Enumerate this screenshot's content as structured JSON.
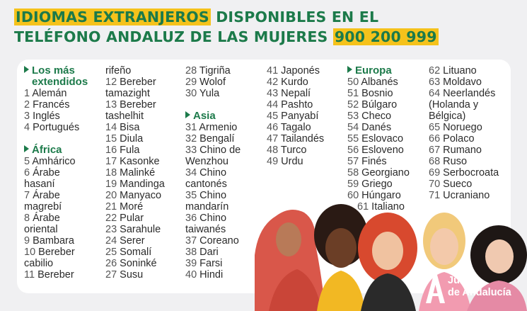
{
  "header": {
    "line1_highlight": "IDIOMAS EXTRANJEROS",
    "line1_rest": " DISPONIBLES EN EL",
    "line2_text": "TELÉFONO ANDALUZ DE LAS MUJERES ",
    "line2_phone": "900 200 999"
  },
  "colors": {
    "green": "#1c7a4a",
    "yellow": "#f5c21b"
  },
  "columns": [
    [
      {
        "type": "section",
        "text": "Los más"
      },
      {
        "type": "section",
        "text": "extendidos",
        "indent": true
      },
      {
        "num": "1",
        "text": "Alemán"
      },
      {
        "num": "2",
        "text": "Francés"
      },
      {
        "num": "3",
        "text": "Inglés"
      },
      {
        "num": "4",
        "text": "Portugués"
      },
      {
        "type": "gap"
      },
      {
        "type": "section",
        "text": "África"
      },
      {
        "num": "5",
        "text": "Amhárico"
      },
      {
        "num": "6",
        "text": "Árabe"
      },
      {
        "text": "hasaní"
      },
      {
        "num": "7",
        "text": "Árabe"
      },
      {
        "text": "magrebí"
      },
      {
        "num": "8",
        "text": "Árabe"
      },
      {
        "text": "oriental"
      },
      {
        "num": "9",
        "text": "Bambara"
      },
      {
        "num": "10",
        "text": "Bereber"
      },
      {
        "text": "cabilio"
      },
      {
        "num": "11",
        "text": "Bereber"
      }
    ],
    [
      {
        "text": "rifeño"
      },
      {
        "num": "12",
        "text": "Bereber"
      },
      {
        "text": "tamazight"
      },
      {
        "num": "13",
        "text": "Bereber"
      },
      {
        "text": "tashelhit"
      },
      {
        "num": "14",
        "text": "Bisa"
      },
      {
        "num": "15",
        "text": "Diula"
      },
      {
        "num": "16",
        "text": "Fula"
      },
      {
        "num": "17",
        "text": "Kasonke"
      },
      {
        "num": "18",
        "text": "Malinké"
      },
      {
        "num": "19",
        "text": "Mandinga"
      },
      {
        "num": "20",
        "text": "Manyaco"
      },
      {
        "num": "21",
        "text": "Moré"
      },
      {
        "num": "22",
        "text": "Pular"
      },
      {
        "num": "23",
        "text": "Sarahule"
      },
      {
        "num": "24",
        "text": "Serer"
      },
      {
        "num": "25",
        "text": "Somalí"
      },
      {
        "num": "26",
        "text": "Soninké"
      },
      {
        "num": "27",
        "text": "Susu"
      }
    ],
    [
      {
        "num": "28",
        "text": "Tigriña"
      },
      {
        "num": "29",
        "text": "Wolof"
      },
      {
        "num": "30",
        "text": "Yula"
      },
      {
        "type": "gap"
      },
      {
        "type": "section",
        "text": "Asia"
      },
      {
        "num": "31",
        "text": "Armenio"
      },
      {
        "num": "32",
        "text": "Bengalí"
      },
      {
        "num": "33",
        "text": "Chino de"
      },
      {
        "text": "Wenzhou"
      },
      {
        "num": "34",
        "text": "Chino"
      },
      {
        "text": "cantonés"
      },
      {
        "num": "35",
        "text": "Chino"
      },
      {
        "text": "mandarín"
      },
      {
        "num": "36",
        "text": "Chino"
      },
      {
        "text": "taiwanés"
      },
      {
        "num": "37",
        "text": "Coreano"
      },
      {
        "num": "38",
        "text": "Dari"
      },
      {
        "num": "39",
        "text": "Farsi"
      },
      {
        "num": "40",
        "text": "Hindi"
      }
    ],
    [
      {
        "num": "41",
        "text": "Japonés"
      },
      {
        "num": "42",
        "text": "Kurdo"
      },
      {
        "num": "43",
        "text": "Nepalí"
      },
      {
        "num": "44",
        "text": "Pashto"
      },
      {
        "num": "45",
        "text": "Panyabí"
      },
      {
        "num": "46",
        "text": "Tagalo"
      },
      {
        "num": "47",
        "text": "Tailandés"
      },
      {
        "num": "48",
        "text": "Turco"
      },
      {
        "num": "49",
        "text": "Urdu"
      }
    ],
    [
      {
        "type": "section",
        "text": "Europa"
      },
      {
        "num": "50",
        "text": "Albanés"
      },
      {
        "num": "51",
        "text": "Bosnio"
      },
      {
        "num": "52",
        "text": "Búlgaro"
      },
      {
        "num": "53",
        "text": "Checo"
      },
      {
        "num": "54",
        "text": "Danés"
      },
      {
        "num": "55",
        "text": "Eslovaco"
      },
      {
        "num": "56",
        "text": "Esloveno"
      },
      {
        "num": "57",
        "text": "Finés"
      },
      {
        "num": "58",
        "text": "Georgiano"
      },
      {
        "num": "59",
        "text": "Griego"
      },
      {
        "num": "60",
        "text": "Húngaro"
      },
      {
        "num": "61",
        "text": "Italiano",
        "indent": true
      }
    ],
    [
      {
        "num": "62",
        "text": "Lituano"
      },
      {
        "num": "63",
        "text": "Moldavo"
      },
      {
        "num": "64",
        "text": "Neerlandés"
      },
      {
        "text": "(Holanda y"
      },
      {
        "text": "Bélgica)"
      },
      {
        "num": "65",
        "text": "Noruego"
      },
      {
        "num": "66",
        "text": "Polaco"
      },
      {
        "num": "67",
        "text": "Rumano"
      },
      {
        "num": "68",
        "text": "Ruso"
      },
      {
        "num": "69",
        "text": "Serbocroata"
      },
      {
        "num": "70",
        "text": "Sueco"
      },
      {
        "num": "71",
        "text": "Ucraniano"
      }
    ]
  ],
  "logo": {
    "line1": "Junta",
    "line2": "de Andalucía"
  }
}
